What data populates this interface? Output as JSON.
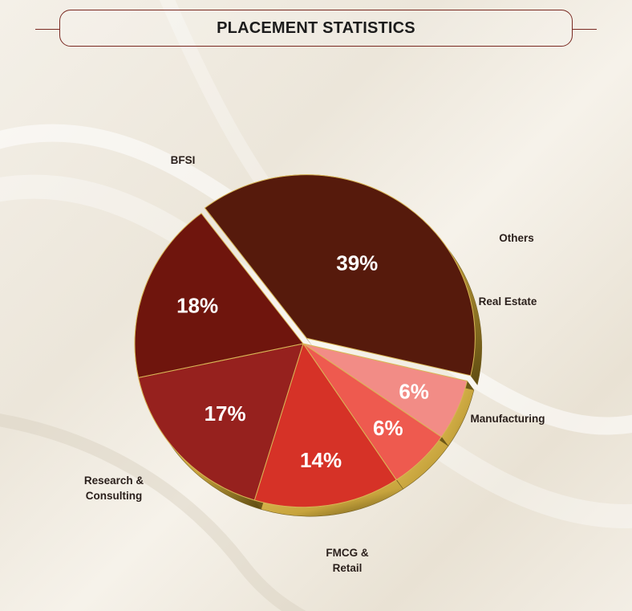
{
  "header": {
    "title": "PLACEMENT STATISTICS"
  },
  "colors": {
    "BFSI": "#561a0c",
    "Research & Consulting": "#6f150d",
    "FMCG & Retail": "#96211e",
    "Manufacturing": "#d63227",
    "Real Estate": "#ee5a4f",
    "Others": "#f28c86",
    "rim": "#c7a43d",
    "rim_dark": "#5d4a10"
  },
  "chart_data": {
    "type": "pie",
    "title": "PLACEMENT STATISTICS",
    "slices": [
      {
        "name": "BFSI",
        "value": 39,
        "label": "39%",
        "exploded": true
      },
      {
        "name": "Others",
        "value": 6,
        "label": "6%"
      },
      {
        "name": "Real Estate",
        "value": 6,
        "label": "6%"
      },
      {
        "name": "Manufacturing",
        "value": 14,
        "label": "14%"
      },
      {
        "name": "FMCG & Retail",
        "value": 17,
        "label": "17%"
      },
      {
        "name": "Research & Consulting",
        "value": 18,
        "label": "18%"
      }
    ]
  }
}
